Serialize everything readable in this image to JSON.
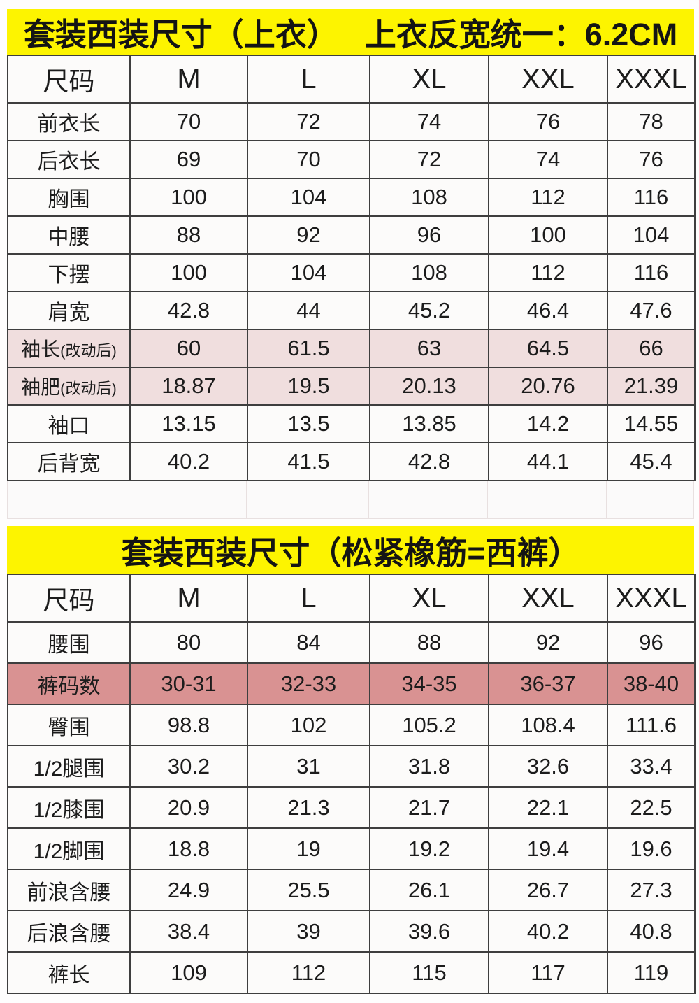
{
  "colors": {
    "title_bg": "#fdf400",
    "border_dark": "#3e3e3e",
    "highlight_light": "#f0dede",
    "highlight_rose": "#d99292",
    "text": "#1c1c1c"
  },
  "tables": [
    {
      "title_left": "套装西装尺寸（上衣）",
      "title_right": "上衣反宽统一：6.2CM",
      "columns": [
        "尺码",
        "M",
        "L",
        "XL",
        "XXL",
        "XXXL"
      ],
      "rows": [
        {
          "label": "前衣长",
          "values": [
            "70",
            "72",
            "74",
            "76",
            "78"
          ]
        },
        {
          "label": "后衣长",
          "values": [
            "69",
            "70",
            "72",
            "74",
            "76"
          ]
        },
        {
          "label": "胸围",
          "values": [
            "100",
            "104",
            "108",
            "112",
            "116"
          ]
        },
        {
          "label": "中腰",
          "values": [
            "88",
            "92",
            "96",
            "100",
            "104"
          ]
        },
        {
          "label": "下摆",
          "values": [
            "100",
            "104",
            "108",
            "112",
            "116"
          ]
        },
        {
          "label": "肩宽",
          "values": [
            "42.8",
            "44",
            "45.2",
            "46.4",
            "47.6"
          ]
        },
        {
          "label": "袖长",
          "label_sub": "(改动后)",
          "highlight": "light-pink",
          "values": [
            "60",
            "61.5",
            "63",
            "64.5",
            "66"
          ]
        },
        {
          "label": "袖肥",
          "label_sub": "(改动后)",
          "highlight": "light-pink",
          "values": [
            "18.87",
            "19.5",
            "20.13",
            "20.76",
            "21.39"
          ]
        },
        {
          "label": "袖口",
          "values": [
            "13.15",
            "13.5",
            "13.85",
            "14.2",
            "14.55"
          ]
        },
        {
          "label": "后背宽",
          "values": [
            "40.2",
            "41.5",
            "42.8",
            "44.1",
            "45.4"
          ]
        }
      ]
    },
    {
      "title_left": "套装西装尺寸（松紧橡筋=西裤）",
      "columns": [
        "尺码",
        "M",
        "L",
        "XL",
        "XXL",
        "XXXL"
      ],
      "rows": [
        {
          "label": "腰围",
          "values": [
            "80",
            "84",
            "88",
            "92",
            "96"
          ]
        },
        {
          "label": "裤码数",
          "highlight": "rose",
          "values": [
            "30-31",
            "32-33",
            "34-35",
            "36-37",
            "38-40"
          ]
        },
        {
          "label": "臀围",
          "values": [
            "98.8",
            "102",
            "105.2",
            "108.4",
            "111.6"
          ]
        },
        {
          "label": "1/2腿围",
          "values": [
            "30.2",
            "31",
            "31.8",
            "32.6",
            "33.4"
          ]
        },
        {
          "label": "1/2膝围",
          "values": [
            "20.9",
            "21.3",
            "21.7",
            "22.1",
            "22.5"
          ]
        },
        {
          "label": "1/2脚围",
          "values": [
            "18.8",
            "19",
            "19.2",
            "19.4",
            "19.6"
          ]
        },
        {
          "label": "前浪含腰",
          "values": [
            "24.9",
            "25.5",
            "26.1",
            "26.7",
            "27.3"
          ]
        },
        {
          "label": "后浪含腰",
          "values": [
            "38.4",
            "39",
            "39.6",
            "40.2",
            "40.8"
          ]
        },
        {
          "label": "裤长",
          "values": [
            "109",
            "112",
            "115",
            "117",
            "119"
          ]
        }
      ]
    }
  ]
}
